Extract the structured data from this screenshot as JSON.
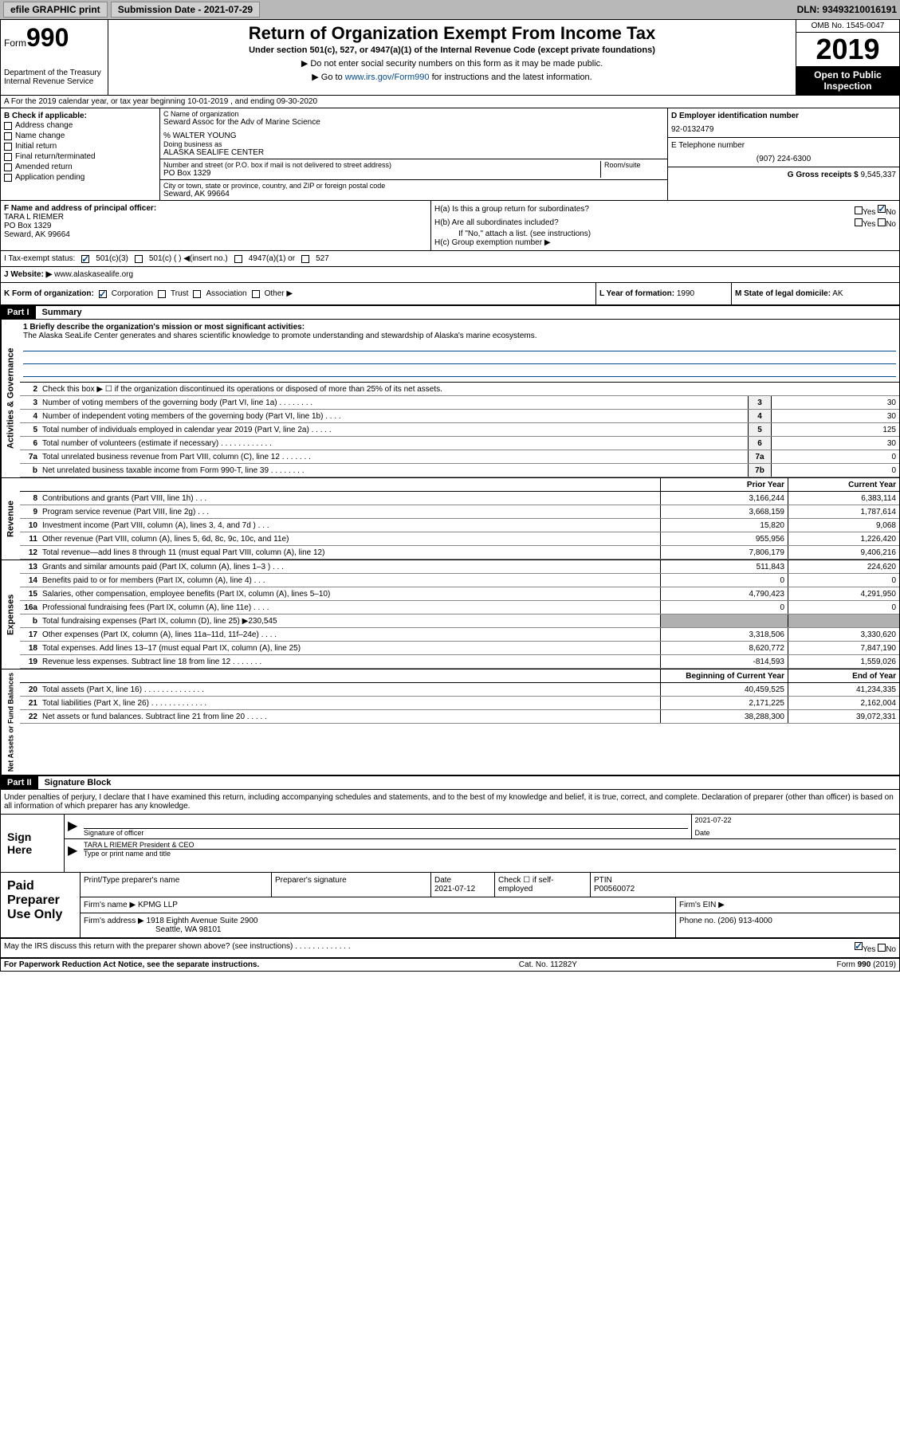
{
  "topbar": {
    "efile": "efile GRAPHIC print",
    "submission": "Submission Date - 2021-07-29",
    "dln": "DLN: 93493210016191"
  },
  "header": {
    "form_prefix": "Form",
    "form_num": "990",
    "dept": "Department of the Treasury\nInternal Revenue Service",
    "title": "Return of Organization Exempt From Income Tax",
    "subtitle": "Under section 501(c), 527, or 4947(a)(1) of the Internal Revenue Code (except private foundations)",
    "inst1": "▶ Do not enter social security numbers on this form as it may be made public.",
    "inst2_pre": "▶ Go to ",
    "inst2_link": "www.irs.gov/Form990",
    "inst2_post": " for instructions and the latest information.",
    "omb": "OMB No. 1545-0047",
    "year": "2019",
    "open_public": "Open to Public Inspection"
  },
  "row_a": "A For the 2019 calendar year, or tax year beginning 10-01-2019    , and ending 09-30-2020",
  "section_b": {
    "label": "B Check if applicable:",
    "checks": [
      "Address change",
      "Name change",
      "Initial return",
      "Final return/terminated",
      "Amended return",
      "Application pending"
    ]
  },
  "section_c": {
    "name_label": "C Name of organization",
    "name": "Seward Assoc for the Adv of Marine Science",
    "care_of": "% WALTER YOUNG",
    "dba_label": "Doing business as",
    "dba": "ALASKA SEALIFE CENTER",
    "addr_label": "Number and street (or P.O. box if mail is not delivered to street address)",
    "room_label": "Room/suite",
    "addr": "PO Box 1329",
    "city_label": "City or town, state or province, country, and ZIP or foreign postal code",
    "city": "Seward, AK  99664"
  },
  "section_d": {
    "label": "D Employer identification number",
    "ein": "92-0132479",
    "e_label": "E Telephone number",
    "phone": "(907) 224-6300",
    "g_label": "G Gross receipts $",
    "g_val": "9,545,337"
  },
  "section_f": {
    "label": "F  Name and address of principal officer:",
    "name": "TARA L RIEMER",
    "addr1": "PO Box 1329",
    "addr2": "Seward, AK  99664"
  },
  "section_h": {
    "a_label": "H(a)  Is this a group return for subordinates?",
    "b_label": "H(b)  Are all subordinates included?",
    "b_note": "If \"No,\" attach a list. (see instructions)",
    "c_label": "H(c)  Group exemption number ▶",
    "yes": "Yes",
    "no": "No"
  },
  "tax_status": {
    "label": "I   Tax-exempt status:",
    "opt1": "501(c)(3)",
    "opt2": "501(c) (  ) ◀(insert no.)",
    "opt3": "4947(a)(1) or",
    "opt4": "527"
  },
  "website": {
    "label": "J  Website: ▶",
    "url": "www.alaskasealife.org"
  },
  "row_k": {
    "label": "K Form of organization:",
    "opts": [
      "Corporation",
      "Trust",
      "Association",
      "Other ▶"
    ],
    "l_label": "L Year of formation:",
    "l_val": "1990",
    "m_label": "M State of legal domicile:",
    "m_val": "AK"
  },
  "part1": {
    "header": "Part I",
    "title": "Summary"
  },
  "mission": {
    "label": "1  Briefly describe the organization's mission or most significant activities:",
    "text": "The Alaska SeaLife Center generates and shares scientific knowledge to promote understanding and stewardship of Alaska's marine ecosystems."
  },
  "gov_lines": [
    {
      "n": "2",
      "t": "Check this box ▶ ☐ if the organization discontinued its operations or disposed of more than 25% of its net assets."
    },
    {
      "n": "3",
      "t": "Number of voting members of the governing body (Part VI, line 1a)  .   .   .   .   .   .   .   .",
      "box": "3",
      "v": "30"
    },
    {
      "n": "4",
      "t": "Number of independent voting members of the governing body (Part VI, line 1b)  .   .   .   .",
      "box": "4",
      "v": "30"
    },
    {
      "n": "5",
      "t": "Total number of individuals employed in calendar year 2019 (Part V, line 2a)  .   .   .   .   .",
      "box": "5",
      "v": "125"
    },
    {
      "n": "6",
      "t": "Total number of volunteers (estimate if necessary)   .   .   .   .   .   .   .   .   .   .   .   .",
      "box": "6",
      "v": "30"
    },
    {
      "n": "7a",
      "t": "Total unrelated business revenue from Part VIII, column (C), line 12  .   .   .   .   .   .   .",
      "box": "7a",
      "v": "0"
    },
    {
      "n": "b",
      "t": "Net unrelated business taxable income from Form 990-T, line 39   .   .   .   .   .   .   .   .",
      "box": "7b",
      "v": "0"
    }
  ],
  "rev_header": {
    "prior": "Prior Year",
    "current": "Current Year"
  },
  "rev_lines": [
    {
      "n": "8",
      "t": "Contributions and grants (Part VIII, line 1h)  .   .   .",
      "p": "3,166,244",
      "c": "6,383,114"
    },
    {
      "n": "9",
      "t": "Program service revenue (Part VIII, line 2g)  .   .   .",
      "p": "3,668,159",
      "c": "1,787,614"
    },
    {
      "n": "10",
      "t": "Investment income (Part VIII, column (A), lines 3, 4, and 7d )   .   .   .",
      "p": "15,820",
      "c": "9,068"
    },
    {
      "n": "11",
      "t": "Other revenue (Part VIII, column (A), lines 5, 6d, 8c, 9c, 10c, and 11e)",
      "p": "955,956",
      "c": "1,226,420"
    },
    {
      "n": "12",
      "t": "Total revenue—add lines 8 through 11 (must equal Part VIII, column (A), line 12)",
      "p": "7,806,179",
      "c": "9,406,216"
    }
  ],
  "exp_lines": [
    {
      "n": "13",
      "t": "Grants and similar amounts paid (Part IX, column (A), lines 1–3 )  .   .   .",
      "p": "511,843",
      "c": "224,620"
    },
    {
      "n": "14",
      "t": "Benefits paid to or for members (Part IX, column (A), line 4)  .   .   .",
      "p": "0",
      "c": "0"
    },
    {
      "n": "15",
      "t": "Salaries, other compensation, employee benefits (Part IX, column (A), lines 5–10)",
      "p": "4,790,423",
      "c": "4,291,950"
    },
    {
      "n": "16a",
      "t": "Professional fundraising fees (Part IX, column (A), line 11e)  .   .   .   .",
      "p": "0",
      "c": "0"
    },
    {
      "n": "b",
      "t": "Total fundraising expenses (Part IX, column (D), line 25) ▶230,545",
      "shaded": true
    },
    {
      "n": "17",
      "t": "Other expenses (Part IX, column (A), lines 11a–11d, 11f–24e)  .   .   .   .",
      "p": "3,318,506",
      "c": "3,330,620"
    },
    {
      "n": "18",
      "t": "Total expenses. Add lines 13–17 (must equal Part IX, column (A), line 25)",
      "p": "8,620,772",
      "c": "7,847,190"
    },
    {
      "n": "19",
      "t": "Revenue less expenses. Subtract line 18 from line 12 .   .   .   .   .   .   .",
      "p": "-814,593",
      "c": "1,559,026"
    }
  ],
  "net_header": {
    "begin": "Beginning of Current Year",
    "end": "End of Year"
  },
  "net_lines": [
    {
      "n": "20",
      "t": "Total assets (Part X, line 16) .   .   .   .   .   .   .   .   .   .   .   .   .   .",
      "p": "40,459,525",
      "c": "41,234,335"
    },
    {
      "n": "21",
      "t": "Total liabilities (Part X, line 26) .   .   .   .   .   .   .   .   .   .   .   .   .",
      "p": "2,171,225",
      "c": "2,162,004"
    },
    {
      "n": "22",
      "t": "Net assets or fund balances. Subtract line 21 from line 20 .   .   .   .   .",
      "p": "38,288,300",
      "c": "39,072,331"
    }
  ],
  "part2": {
    "header": "Part II",
    "title": "Signature Block",
    "decl": "Under penalties of perjury, I declare that I have examined this return, including accompanying schedules and statements, and to the best of my knowledge and belief, it is true, correct, and complete. Declaration of preparer (other than officer) is based on all information of which preparer has any knowledge."
  },
  "sign": {
    "label": "Sign Here",
    "sig_label": "Signature of officer",
    "date_label": "Date",
    "date": "2021-07-22",
    "name": "TARA L RIEMER  President & CEO",
    "name_label": "Type or print name and title"
  },
  "prep": {
    "label": "Paid Preparer Use Only",
    "name_label": "Print/Type preparer's name",
    "sig_label": "Preparer's signature",
    "date_label": "Date",
    "date": "2021-07-12",
    "check_label": "Check ☐ if self-employed",
    "ptin_label": "PTIN",
    "ptin": "P00560072",
    "firm_label": "Firm's name    ▶",
    "firm": "KPMG LLP",
    "ein_label": "Firm's EIN ▶",
    "addr_label": "Firm's address ▶",
    "addr1": "1918 Eighth Avenue Suite 2900",
    "addr2": "Seattle, WA  98101",
    "phone_label": "Phone no.",
    "phone": "(206) 913-4000"
  },
  "discuss": "May the IRS discuss this return with the preparer shown above? (see instructions)   .   .   .   .   .   .   .   .   .   .   .   .   .",
  "footer": {
    "left": "For Paperwork Reduction Act Notice, see the separate instructions.",
    "mid": "Cat. No. 11282Y",
    "right": "Form 990 (2019)"
  }
}
